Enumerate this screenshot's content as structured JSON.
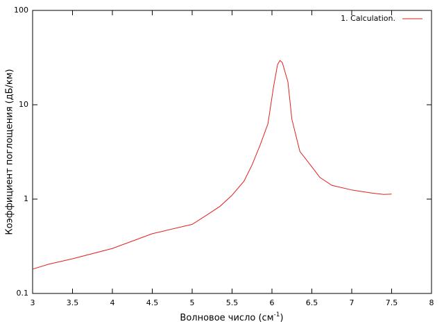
{
  "chart_data": {
    "type": "line",
    "ylabel": "Коэффициент поглощения (дБ/км)",
    "xlabel": {
      "text": "Волновое число (см",
      "sup": "-1",
      "tail": ")"
    },
    "x": [
      3,
      3.2,
      3.5,
      4,
      4.5,
      5,
      5.15,
      5.35,
      5.5,
      5.65,
      5.75,
      5.85,
      5.95,
      6.02,
      6.07,
      6.1,
      6.13,
      6.2,
      6.25,
      6.35,
      6.5,
      6.6,
      6.75,
      7,
      7.25,
      7.4,
      7.5
    ],
    "series": [
      {
        "name": "1. Calculation.",
        "color": "#e0201b",
        "values": [
          0.181,
          0.204,
          0.233,
          0.3,
          0.43,
          0.54,
          0.65,
          0.84,
          1.1,
          1.55,
          2.3,
          3.7,
          6.3,
          15.5,
          26.6,
          29.5,
          28,
          17.5,
          7,
          3.2,
          2.2,
          1.7,
          1.4,
          1.25,
          1.16,
          1.12,
          1.13
        ]
      }
    ],
    "xlim": [
      3,
      8
    ],
    "xticks": [
      3,
      3.5,
      4,
      4.5,
      5,
      5.5,
      6,
      6.5,
      7,
      7.5,
      8
    ],
    "ylim": [
      0.1,
      100
    ],
    "yticks": [
      0.1,
      1,
      10,
      100
    ],
    "ylog": true,
    "grid": false,
    "legend": "top-right"
  }
}
